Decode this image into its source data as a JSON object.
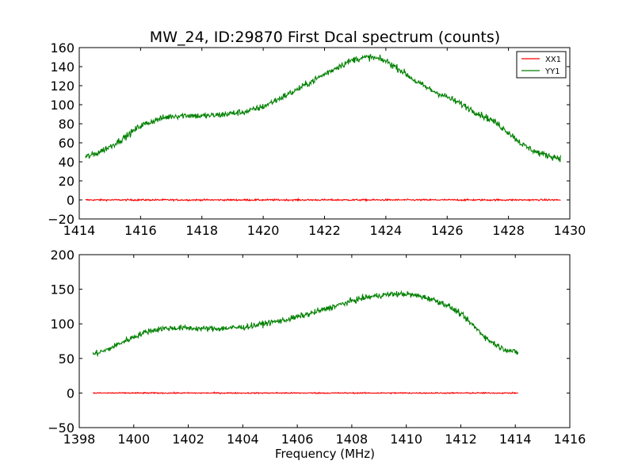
{
  "chart_data": [
    {
      "type": "line",
      "title": "MW_24, ID:29870 First Dcal spectrum (counts)",
      "xlabel": "",
      "ylabel": "",
      "xlim": [
        1414,
        1430
      ],
      "ylim": [
        -20,
        160
      ],
      "x_ticks": [
        1414,
        1416,
        1418,
        1420,
        1422,
        1424,
        1426,
        1428,
        1430
      ],
      "y_ticks": [
        -20,
        0,
        20,
        40,
        60,
        80,
        100,
        120,
        140,
        160
      ],
      "x_tick_labels": [
        "1414",
        "1416",
        "1418",
        "1420",
        "1422",
        "1424",
        "1426",
        "1428",
        "1430"
      ],
      "y_tick_labels": [
        "−20",
        "0",
        "20",
        "40",
        "60",
        "80",
        "100",
        "120",
        "140",
        "160"
      ],
      "grid": false,
      "legend_position": "top-right",
      "noise": {
        "XX1": 0.6,
        "YY1": 2.5
      },
      "series": [
        {
          "name": "XX1",
          "color": "#ff0000",
          "x": [
            1414.2,
            1429.7
          ],
          "y": [
            0,
            0
          ]
        },
        {
          "name": "YY1",
          "color": "#008000",
          "x": [
            1414.2,
            1414.5,
            1415.0,
            1415.5,
            1416.0,
            1416.5,
            1417.0,
            1417.5,
            1418.0,
            1418.5,
            1419.0,
            1419.5,
            1420.0,
            1420.5,
            1421.0,
            1421.5,
            1422.0,
            1422.5,
            1423.0,
            1423.5,
            1424.0,
            1424.5,
            1425.0,
            1425.5,
            1426.0,
            1426.5,
            1427.0,
            1427.5,
            1428.0,
            1428.5,
            1429.0,
            1429.5,
            1429.7
          ],
          "y": [
            45,
            48,
            56,
            66,
            78,
            84,
            88,
            89,
            88,
            89,
            91,
            93,
            98,
            106,
            114,
            123,
            132,
            141,
            148,
            150,
            146,
            136,
            124,
            115,
            108,
            100,
            91,
            83,
            71,
            57,
            49,
            45,
            44
          ]
        }
      ]
    },
    {
      "type": "line",
      "title": "",
      "xlabel": "Frequency (MHz)",
      "ylabel": "",
      "xlim": [
        1398,
        1416
      ],
      "ylim": [
        -50,
        200
      ],
      "x_ticks": [
        1398,
        1400,
        1402,
        1404,
        1406,
        1408,
        1410,
        1412,
        1414,
        1416
      ],
      "y_ticks": [
        -50,
        0,
        50,
        100,
        150,
        200
      ],
      "x_tick_labels": [
        "1398",
        "1400",
        "1402",
        "1404",
        "1406",
        "1408",
        "1410",
        "1412",
        "1414",
        "1416"
      ],
      "y_tick_labels": [
        "−50",
        "0",
        "50",
        "100",
        "150",
        "200"
      ],
      "grid": false,
      "noise": {
        "XX1": 0.6,
        "YY1": 3.0
      },
      "series": [
        {
          "name": "XX1",
          "color": "#ff0000",
          "x": [
            1398.5,
            1414.1
          ],
          "y": [
            0,
            0
          ]
        },
        {
          "name": "YY1",
          "color": "#008000",
          "x": [
            1398.5,
            1399.0,
            1399.5,
            1400.0,
            1400.5,
            1401.0,
            1401.5,
            1402.0,
            1402.5,
            1403.0,
            1403.5,
            1404.0,
            1404.5,
            1405.0,
            1405.5,
            1406.0,
            1406.5,
            1407.0,
            1407.5,
            1408.0,
            1408.5,
            1409.0,
            1409.5,
            1410.0,
            1410.5,
            1411.0,
            1411.5,
            1412.0,
            1412.5,
            1413.0,
            1413.5,
            1414.0,
            1414.1
          ],
          "y": [
            56,
            62,
            72,
            81,
            89,
            93,
            94,
            94,
            93,
            93,
            94,
            95,
            98,
            102,
            105,
            110,
            115,
            121,
            127,
            133,
            138,
            141,
            143,
            143,
            140,
            135,
            127,
            114,
            96,
            77,
            65,
            59,
            58
          ]
        }
      ]
    }
  ]
}
